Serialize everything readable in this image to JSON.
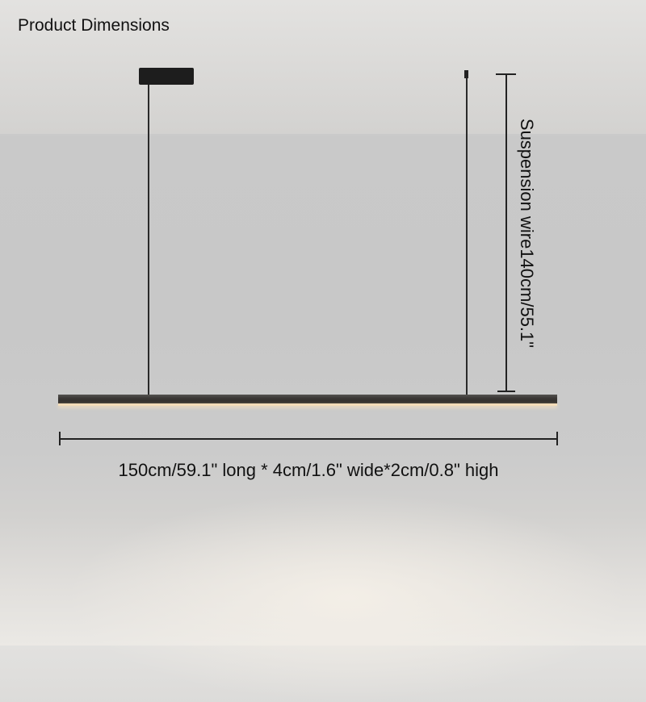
{
  "title": "Product Dimensions",
  "suspension_label": "Suspension wire140cm/55.1\"",
  "size_label": "150cm/59.1\" long * 4cm/1.6\"  wide*2cm/0.8\" high",
  "colors": {
    "fixture": "#2f2c29",
    "led_glow": "#f3dcb8",
    "text": "#111111"
  }
}
